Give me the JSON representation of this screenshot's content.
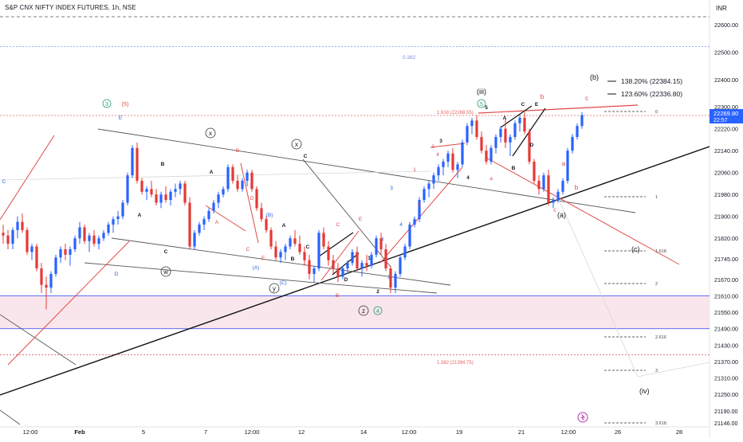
{
  "header": {
    "title": "S&P CNX NIFTY INDEX FUTURES, 1h, NSE",
    "currency": "INR"
  },
  "price_tag": {
    "value": "22269.80",
    "time": "22:57"
  },
  "fib_labels": {
    "f382_top": "0.382",
    "f1618_top": "1.618 (22268.55)",
    "f1382_bottom": "1.382 (21394.75)",
    "ext_0": "0",
    "ext_1": "1",
    "ext_1618": "1.618",
    "ext_2": "2",
    "ext_2616": "2.616",
    "ext_3": "3",
    "ext_3618": "3.618"
  },
  "legend": [
    {
      "text": "138.20% (22384.15)"
    },
    {
      "text": "123.60% (22336.80)"
    }
  ],
  "wave_labels": {
    "b_paren": "(b)",
    "a_paren": "(a)",
    "c_paren": "(c)",
    "iii": "(iii)",
    "iv": "(iv)",
    "x1": "x",
    "x2": "x",
    "w": "w",
    "y": "y",
    "z": "z",
    "c3": "3",
    "c4": "4",
    "c5": "5",
    "c5_paren": "(5)",
    "A1": "A",
    "B1": "B",
    "C1": "C",
    "D1": "D",
    "E1": "E",
    "A2": "A",
    "B2": "B",
    "C2": "C",
    "D2": "D",
    "E2": "E",
    "A3": "A",
    "B3": "B",
    "C3": "C",
    "D3": "D",
    "E3": "E",
    "A4": "A",
    "B4": "B",
    "C4": "C",
    "D4": "D",
    "E4": "E",
    "pA": "(A)",
    "pB": "(B)",
    "pC": "(C)",
    "n1": "1",
    "n2": "2",
    "n3": "3",
    "n4": "4",
    "r1": "1",
    "r2": "2",
    "r3": "3",
    "r4": "4",
    "b1": "1",
    "b2": "2",
    "b3": "3",
    "b4": "4",
    "b5": "5",
    "ra": "a",
    "rb": "b",
    "rc": "c",
    "rb2": "b",
    "rc2": "c",
    "ra2": "a",
    "rB": "B",
    "rE": "E",
    "rC": "C",
    "rD": "D",
    "rA": "A",
    "c_left": "C",
    "d_left": "D",
    "e_left": "E"
  },
  "chart_data": {
    "type": "candlestick",
    "title": "S&P CNX NIFTY INDEX FUTURES, 1h, NSE",
    "y_axis": {
      "ticks": [
        22600.0,
        22500.0,
        22400.0,
        22300.0,
        22220.0,
        22140.0,
        22060.0,
        21980.0,
        21900.0,
        21820.0,
        21745.0,
        21670.0,
        21610.0,
        21550.0,
        21490.0,
        21430.0,
        21370.0,
        21310.0,
        21250.0,
        21190.0,
        21146.0
      ],
      "range": [
        21140,
        22640
      ]
    },
    "x_axis": {
      "ticks": [
        "12:00",
        "Feb",
        "5",
        "7",
        "12:00",
        "12",
        "14",
        "12:00",
        "19",
        "21",
        "12:00",
        "26",
        "28"
      ]
    },
    "series": [
      {
        "type": "candles",
        "ohlc": [
          [
            21840,
            21870,
            21800,
            21830
          ],
          [
            21830,
            21850,
            21780,
            21800
          ],
          [
            21800,
            21860,
            21780,
            21850
          ],
          [
            21850,
            21900,
            21820,
            21880
          ],
          [
            21880,
            21910,
            21840,
            21850
          ],
          [
            21850,
            21860,
            21760,
            21770
          ],
          [
            21770,
            21800,
            21740,
            21790
          ],
          [
            21790,
            21800,
            21700,
            21710
          ],
          [
            21710,
            21730,
            21620,
            21650
          ],
          [
            21650,
            21680,
            21560,
            21640
          ],
          [
            21640,
            21700,
            21620,
            21690
          ],
          [
            21690,
            21760,
            21680,
            21750
          ],
          [
            21750,
            21790,
            21730,
            21780
          ],
          [
            21780,
            21800,
            21740,
            21760
          ],
          [
            21760,
            21790,
            21720,
            21780
          ],
          [
            21780,
            21830,
            21770,
            21820
          ],
          [
            21820,
            21880,
            21800,
            21860
          ],
          [
            21860,
            21870,
            21800,
            21810
          ],
          [
            21810,
            21840,
            21770,
            21830
          ],
          [
            21830,
            21850,
            21790,
            21800
          ],
          [
            21800,
            21830,
            21780,
            21820
          ],
          [
            21820,
            21850,
            21810,
            21840
          ],
          [
            21840,
            21880,
            21830,
            21870
          ],
          [
            21870,
            21900,
            21840,
            21890
          ],
          [
            21890,
            21920,
            21870,
            21900
          ],
          [
            21900,
            21960,
            21890,
            21950
          ],
          [
            21950,
            22060,
            21940,
            22050
          ],
          [
            22050,
            22160,
            22040,
            22150
          ],
          [
            22150,
            22170,
            22020,
            22030
          ],
          [
            22030,
            22040,
            21980,
            21990
          ],
          [
            21990,
            22010,
            21960,
            22000
          ],
          [
            22000,
            22030,
            21970,
            21980
          ],
          [
            21980,
            22000,
            21940,
            21950
          ],
          [
            21950,
            21990,
            21930,
            21980
          ],
          [
            21980,
            22010,
            21950,
            21960
          ],
          [
            21960,
            22000,
            21940,
            21990
          ],
          [
            21990,
            22020,
            21970,
            22000
          ],
          [
            22000,
            22030,
            21980,
            22020
          ],
          [
            22020,
            22030,
            21940,
            21950
          ],
          [
            21950,
            21970,
            21780,
            21790
          ],
          [
            21790,
            21850,
            21780,
            21840
          ],
          [
            21840,
            21880,
            21830,
            21870
          ],
          [
            21870,
            21900,
            21850,
            21890
          ],
          [
            21890,
            21930,
            21880,
            21920
          ],
          [
            21920,
            21960,
            21910,
            21950
          ],
          [
            21950,
            21990,
            21930,
            21980
          ],
          [
            21980,
            22010,
            21970,
            22000
          ],
          [
            22000,
            22090,
            21990,
            22080
          ],
          [
            22080,
            22090,
            22020,
            22030
          ],
          [
            22030,
            22050,
            21990,
            22000
          ],
          [
            22000,
            22040,
            21990,
            22030
          ],
          [
            22030,
            22070,
            22010,
            22060
          ],
          [
            22060,
            22070,
            21990,
            22000
          ],
          [
            22000,
            22010,
            21920,
            21930
          ],
          [
            21930,
            21950,
            21880,
            21890
          ],
          [
            21890,
            21900,
            21840,
            21850
          ],
          [
            21850,
            21860,
            21780,
            21790
          ],
          [
            21790,
            21810,
            21740,
            21750
          ],
          [
            21750,
            21780,
            21730,
            21770
          ],
          [
            21770,
            21800,
            21740,
            21790
          ],
          [
            21790,
            21830,
            21780,
            21820
          ],
          [
            21820,
            21850,
            21790,
            21800
          ],
          [
            21800,
            21830,
            21760,
            21770
          ],
          [
            21770,
            21790,
            21720,
            21740
          ],
          [
            21740,
            21760,
            21670,
            21690
          ],
          [
            21690,
            21720,
            21660,
            21710
          ],
          [
            21710,
            21850,
            21700,
            21840
          ],
          [
            21840,
            21860,
            21780,
            21790
          ],
          [
            21790,
            21810,
            21720,
            21740
          ],
          [
            21740,
            21760,
            21690,
            21710
          ],
          [
            21710,
            21730,
            21660,
            21680
          ],
          [
            21680,
            21720,
            21670,
            21710
          ],
          [
            21710,
            21740,
            21690,
            21730
          ],
          [
            21730,
            21780,
            21720,
            21770
          ],
          [
            21770,
            21790,
            21700,
            21710
          ],
          [
            21710,
            21740,
            21680,
            21730
          ],
          [
            21730,
            21760,
            21700,
            21720
          ],
          [
            21720,
            21770,
            21710,
            21760
          ],
          [
            21760,
            21830,
            21750,
            21820
          ],
          [
            21820,
            21840,
            21760,
            21780
          ],
          [
            21780,
            21800,
            21700,
            21710
          ],
          [
            21710,
            21720,
            21620,
            21640
          ],
          [
            21640,
            21700,
            21620,
            21690
          ],
          [
            21690,
            21760,
            21680,
            21750
          ],
          [
            21750,
            21800,
            21740,
            21790
          ],
          [
            21790,
            21880,
            21780,
            21870
          ],
          [
            21870,
            21900,
            21860,
            21890
          ],
          [
            21890,
            21970,
            21880,
            21960
          ],
          [
            21960,
            22010,
            21950,
            22000
          ],
          [
            22000,
            22030,
            21970,
            22020
          ],
          [
            22020,
            22060,
            22000,
            22050
          ],
          [
            22050,
            22090,
            22030,
            22080
          ],
          [
            22080,
            22110,
            22050,
            22100
          ],
          [
            22100,
            22140,
            22080,
            22130
          ],
          [
            22130,
            22150,
            22060,
            22070
          ],
          [
            22070,
            22100,
            22040,
            22090
          ],
          [
            22090,
            22180,
            22080,
            22170
          ],
          [
            22170,
            22240,
            22160,
            22230
          ],
          [
            22230,
            22260,
            22200,
            22250
          ],
          [
            22250,
            22270,
            22180,
            22190
          ],
          [
            22190,
            22210,
            22130,
            22140
          ],
          [
            22140,
            22160,
            22090,
            22100
          ],
          [
            22100,
            22160,
            22090,
            22150
          ],
          [
            22150,
            22200,
            22130,
            22190
          ],
          [
            22190,
            22230,
            22170,
            22220
          ],
          [
            22220,
            22260,
            22150,
            22170
          ],
          [
            22170,
            22200,
            22120,
            22190
          ],
          [
            22190,
            22250,
            22180,
            22240
          ],
          [
            22240,
            22270,
            22210,
            22260
          ],
          [
            22260,
            22280,
            22200,
            22210
          ],
          [
            22210,
            22220,
            22090,
            22100
          ],
          [
            22100,
            22110,
            22020,
            22030
          ],
          [
            22030,
            22050,
            21980,
            22000
          ],
          [
            22000,
            22060,
            21990,
            22050
          ],
          [
            22050,
            22070,
            21940,
            21950
          ],
          [
            21950,
            21970,
            21930,
            21960
          ],
          [
            21960,
            22000,
            21950,
            21990
          ],
          [
            21990,
            22040,
            21980,
            22030
          ],
          [
            22030,
            22150,
            22020,
            22140
          ],
          [
            22140,
            22200,
            22130,
            22190
          ],
          [
            22190,
            22240,
            22180,
            22230
          ],
          [
            22230,
            22280,
            22220,
            22269.8
          ]
        ]
      }
    ],
    "levels": [
      {
        "label": "0.382",
        "value": 22520
      },
      {
        "label": "1.618 (22268.55)",
        "value": 22268.55
      },
      {
        "label": "1.382 (21394.75)",
        "value": 21394.75
      }
    ],
    "zone": {
      "from": 21490,
      "to": 21610
    },
    "grid": false
  }
}
